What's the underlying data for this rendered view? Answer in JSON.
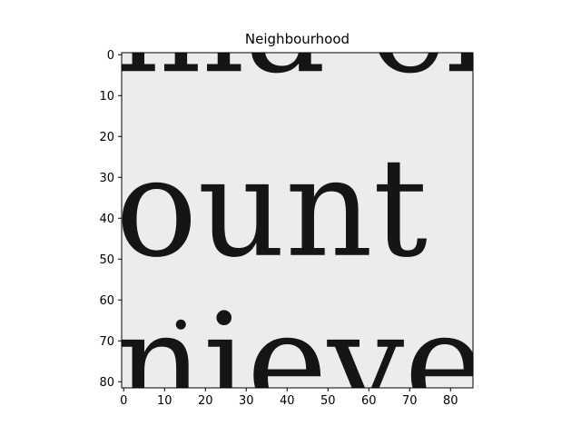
{
  "chart_data": {
    "type": "image",
    "title": "Neighbourhood",
    "xlabel": "",
    "ylabel": "",
    "xlim": [
      -0.5,
      85.5
    ],
    "ylim": [
      81.5,
      -0.5
    ],
    "x_ticks": [
      0,
      10,
      20,
      30,
      40,
      50,
      60,
      70,
      80
    ],
    "y_ticks": [
      0,
      10,
      20,
      30,
      40,
      50,
      60,
      70,
      80
    ],
    "x_tick_labels": [
      "0",
      "10",
      "20",
      "30",
      "40",
      "50",
      "60",
      "70",
      "80"
    ],
    "y_tick_labels": [
      "0",
      "10",
      "20",
      "30",
      "40",
      "50",
      "60",
      "70",
      "80"
    ],
    "grid": false,
    "colormap": "gray",
    "background_color": "#ececec",
    "ink_color": "#151515",
    "image_content": {
      "description_lines": [
        {
          "text": "ma cl",
          "baseline_y": 4
        },
        {
          "text": "ount i",
          "baseline_y": 49
        },
        {
          "text": "nieves",
          "baseline_y": 87
        }
      ],
      "dot": {
        "x": 14,
        "y": 66
      }
    }
  }
}
